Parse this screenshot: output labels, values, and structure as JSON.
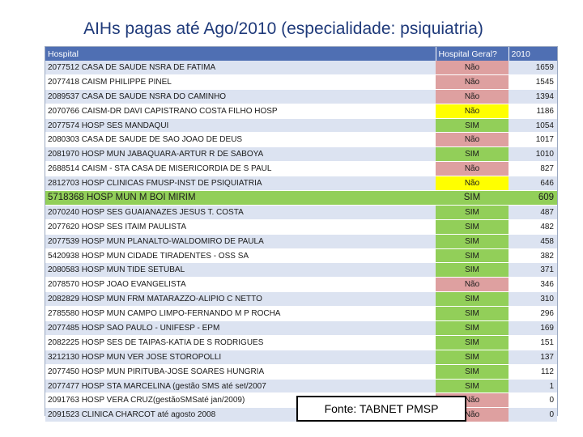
{
  "title": "AIHs pagas até Ago/2010 (especialidade:  psiquiatria)",
  "table": {
    "headers": [
      "Hospital",
      "Hospital Geral?",
      "2010"
    ],
    "rows": [
      {
        "hospital": "2077512 CASA DE SAUDE NSRA DE FATIMA",
        "geral": "Não",
        "value": "1659",
        "geral_color": "#dea0a0"
      },
      {
        "hospital": "2077418 CAISM PHILIPPE PINEL",
        "geral": "Não",
        "value": "1545",
        "geral_color": "#dea0a0"
      },
      {
        "hospital": "2089537 CASA DE SAUDE NSRA DO CAMINHO",
        "geral": "Não",
        "value": "1394",
        "geral_color": "#dea0a0"
      },
      {
        "hospital": "2070766 CAISM-DR DAVI CAPISTRANO COSTA FILHO HOSP",
        "geral": "Não",
        "value": "1186",
        "geral_color": "#ffff00"
      },
      {
        "hospital": "2077574 HOSP SES MANDAQUI",
        "geral": "SIM",
        "value": "1054",
        "geral_color": "#92cf59"
      },
      {
        "hospital": "2080303 CASA DE SAUDE DE SAO JOAO DE DEUS",
        "geral": "Não",
        "value": "1017",
        "geral_color": "#dea0a0"
      },
      {
        "hospital": "2081970 HOSP MUN JABAQUARA-ARTUR R DE SABOYA",
        "geral": "SIM",
        "value": "1010",
        "geral_color": "#92cf59"
      },
      {
        "hospital": "2688514 CAISM - STA CASA  DE MISERICORDIA DE S PAUL",
        "geral": "Não",
        "value": "827",
        "geral_color": "#dea0a0"
      },
      {
        "hospital": "2812703 HOSP CLINICAS FMUSP-INST DE PSIQUIATRIA",
        "geral": "Não",
        "value": "646",
        "geral_color": "#ffff00"
      },
      {
        "hospital": "5718368 HOSP MUN M BOI MIRIM",
        "geral": "SIM",
        "value": "609",
        "geral_color": "#92cf59",
        "highlight": true
      },
      {
        "hospital": "2070240 HOSP SES GUAIANAZES   JESUS T. COSTA",
        "geral": "SIM",
        "value": "487",
        "geral_color": "#92cf59"
      },
      {
        "hospital": "2077620 HOSP SES ITAIM PAULISTA",
        "geral": "SIM",
        "value": "482",
        "geral_color": "#92cf59"
      },
      {
        "hospital": "2077539 HOSP MUN PLANALTO-WALDOMIRO DE PAULA",
        "geral": "SIM",
        "value": "458",
        "geral_color": "#92cf59"
      },
      {
        "hospital": "5420938 HOSP MUN CIDADE TIRADENTES - OSS SA",
        "geral": "SIM",
        "value": "382",
        "geral_color": "#92cf59"
      },
      {
        "hospital": "2080583 HOSP MUN TIDE SETUBAL",
        "geral": "SIM",
        "value": "371",
        "geral_color": "#92cf59"
      },
      {
        "hospital": "2078570 HOSP JOAO EVANGELISTA",
        "geral": "Não",
        "value": "346",
        "geral_color": "#dea0a0"
      },
      {
        "hospital": "2082829 HOSP MUN FRM MATARAZZO-ALIPIO C NETTO",
        "geral": "SIM",
        "value": "310",
        "geral_color": "#92cf59"
      },
      {
        "hospital": "2785580 HOSP MUN CAMPO LIMPO-FERNANDO M P ROCHA",
        "geral": "SIM",
        "value": "296",
        "geral_color": "#92cf59"
      },
      {
        "hospital": "2077485 HOSP SAO PAULO - UNIFESP - EPM",
        "geral": "SIM",
        "value": "169",
        "geral_color": "#92cf59"
      },
      {
        "hospital": "2082225 HOSP SES DE TAIPAS-KATIA DE S RODRIGUES",
        "geral": "SIM",
        "value": "151",
        "geral_color": "#92cf59"
      },
      {
        "hospital": "3212130 HOSP MUN VER JOSE STOROPOLLI",
        "geral": "SIM",
        "value": "137",
        "geral_color": "#92cf59"
      },
      {
        "hospital": "2077450 HOSP MUN PIRITUBA-JOSE SOARES HUNGRIA",
        "geral": "SIM",
        "value": "112",
        "geral_color": "#92cf59"
      },
      {
        "hospital": "2077477 HOSP STA MARCELINA (gestão SMS até set/2007",
        "geral": "SIM",
        "value": "1",
        "geral_color": "#92cf59"
      },
      {
        "hospital": "2091763 HOSP VERA CRUZ(gestãoSMSaté jan/2009)",
        "geral": "Não",
        "value": "0",
        "geral_color": "#dea0a0"
      },
      {
        "hospital": "2091523 CLINICA CHARCOT até agosto 2008",
        "geral": "Não",
        "value": "0",
        "geral_color": "#dea0a0"
      }
    ]
  },
  "source_label": "Fonte: TABNET PMSP"
}
